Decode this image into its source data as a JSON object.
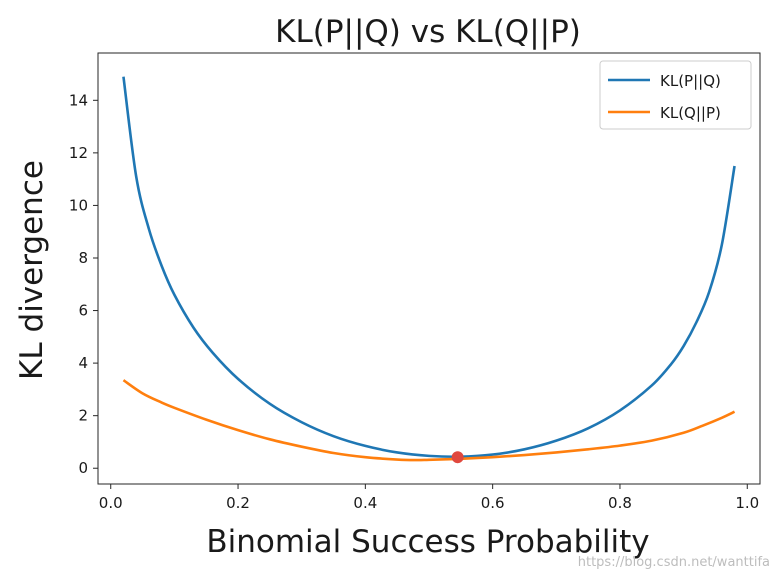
{
  "chart_data": {
    "type": "line",
    "title": "KL(P||Q) vs KL(Q||P)",
    "xlabel": "Binomial Success Probability",
    "ylabel": "KL divergence",
    "xlim": [
      -0.02,
      1.02
    ],
    "ylim": [
      -0.6,
      15.8
    ],
    "xticks": [
      0.0,
      0.2,
      0.4,
      0.6,
      0.8,
      1.0
    ],
    "xtick_labels": [
      "0.0",
      "0.2",
      "0.4",
      "0.6",
      "0.8",
      "1.0"
    ],
    "yticks": [
      0,
      2,
      4,
      6,
      8,
      10,
      12,
      14
    ],
    "ytick_labels": [
      "0",
      "2",
      "4",
      "6",
      "8",
      "10",
      "12",
      "14"
    ],
    "legend_position": "top-right",
    "series": [
      {
        "name": "KL(P||Q)",
        "color": "#1f77b4",
        "x": [
          0.02,
          0.04,
          0.06,
          0.08,
          0.1,
          0.13,
          0.16,
          0.2,
          0.25,
          0.3,
          0.35,
          0.4,
          0.45,
          0.5,
          0.55,
          0.6,
          0.65,
          0.7,
          0.75,
          0.8,
          0.85,
          0.88,
          0.9,
          0.92,
          0.94,
          0.96,
          0.98
        ],
        "y": [
          14.9,
          11.1,
          9.1,
          7.7,
          6.6,
          5.35,
          4.4,
          3.4,
          2.45,
          1.75,
          1.22,
          0.85,
          0.6,
          0.47,
          0.44,
          0.52,
          0.72,
          1.05,
          1.52,
          2.2,
          3.15,
          3.95,
          4.65,
          5.55,
          6.7,
          8.5,
          11.5
        ]
      },
      {
        "name": "KL(Q||P)",
        "color": "#ff7f0e",
        "x": [
          0.02,
          0.05,
          0.08,
          0.1,
          0.15,
          0.2,
          0.25,
          0.3,
          0.35,
          0.4,
          0.45,
          0.48,
          0.5,
          0.55,
          0.6,
          0.65,
          0.7,
          0.75,
          0.8,
          0.85,
          0.9,
          0.93,
          0.96,
          0.98
        ],
        "y": [
          3.35,
          2.85,
          2.5,
          2.3,
          1.85,
          1.45,
          1.1,
          0.82,
          0.58,
          0.42,
          0.33,
          0.31,
          0.32,
          0.36,
          0.42,
          0.5,
          0.6,
          0.72,
          0.86,
          1.05,
          1.35,
          1.62,
          1.92,
          2.15
        ]
      }
    ],
    "marker": {
      "x": 0.545,
      "y": 0.42,
      "color": "#e0483e"
    }
  },
  "watermark": "https://blog.csdn.net/wanttifa"
}
